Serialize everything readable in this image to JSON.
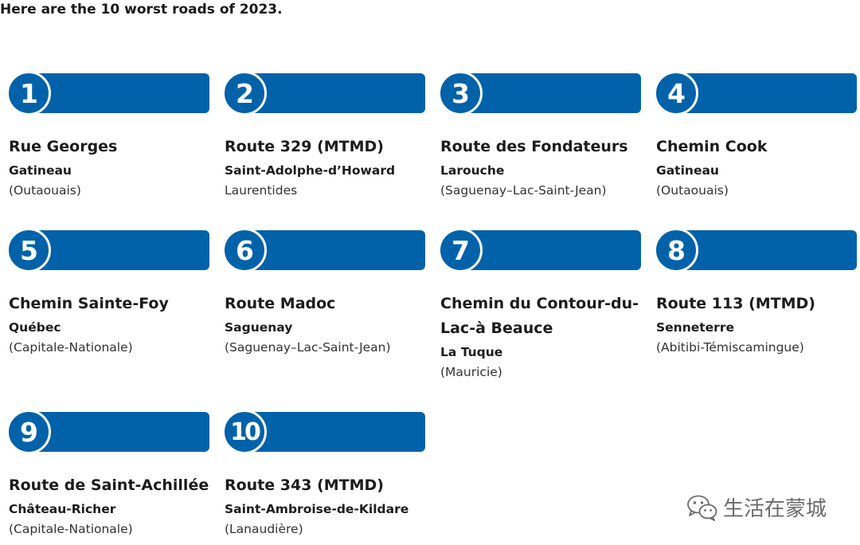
{
  "heading": "Here are the 10 worst roads of 2023.",
  "colors": {
    "accent": "#0162a9",
    "text": "#1c1c1c"
  },
  "roads": [
    {
      "rank": "1",
      "name": "Rue Georges",
      "city": "Gatineau",
      "region": "(Outaouais)"
    },
    {
      "rank": "2",
      "name": "Route 329 (MTMD)",
      "city": "Saint-Adolphe-d’Howard",
      "region": "Laurentides"
    },
    {
      "rank": "3",
      "name": "Route des Fondateurs",
      "city": "Larouche",
      "region": "(Saguenay–Lac-Saint-Jean)"
    },
    {
      "rank": "4",
      "name": "Chemin Cook",
      "city": "Gatineau",
      "region": "(Outaouais)"
    },
    {
      "rank": "5",
      "name": "Chemin Sainte-Foy",
      "city": "Québec",
      "region": "(Capitale-Nationale)"
    },
    {
      "rank": "6",
      "name": "Route Madoc",
      "city": "Saguenay",
      "region": "(Saguenay–Lac-Saint-Jean)"
    },
    {
      "rank": "7",
      "name": "Chemin du Contour-du-Lac-à Beauce",
      "city": "La Tuque",
      "region": "(Mauricie)"
    },
    {
      "rank": "8",
      "name": "Route 113 (MTMD)",
      "city": "Senneterre",
      "region": "(Abitibi-Témiscamingue)"
    },
    {
      "rank": "9",
      "name": "Route de Saint-Achillée",
      "city": "Château-Richer",
      "region": "(Capitale-Nationale)"
    },
    {
      "rank": "10",
      "name": "Route 343 (MTMD)",
      "city": "Saint-Ambroise-de-Kildare",
      "region": "(Lanaudière)"
    }
  ],
  "watermark": {
    "text": "生活在蒙城",
    "icon": "wechat-icon"
  }
}
